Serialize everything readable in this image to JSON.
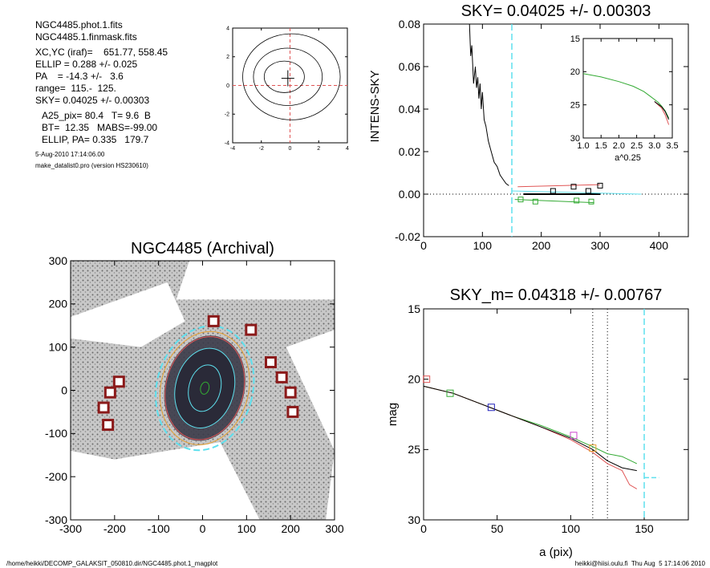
{
  "info": {
    "lines_a": [
      "NGC4485.phot.1.fits",
      "NGC4485.1.finmask.fits"
    ],
    "lines_b": [
      "XC,YC (iraf)=    651.77, 558.45",
      "ELLIP = 0.288 +/- 0.025",
      "PA    = -14.3 +/-   3.6",
      "range=  115.-  125.",
      "SKY= 0.04025 +/- 0.00303"
    ],
    "lines_c": [
      "A25_pix= 80.4   T= 9.6  B",
      "BT=  12.35   MABS=-99.00",
      "ELLIP, PA= 0.335   179.7"
    ],
    "date": "5-Aug-2010 17:14:06.00",
    "program": "make_datalist0.pro (version HS230610)"
  },
  "footer": {
    "left": "/home/heikki/DECOMP_GALAKSIT_050810.dir/NGC4485.phot.1_magplot",
    "right": "heikki@hiisi.oulu.fi  Thu Aug  5 17:14:06 2010"
  },
  "colors": {
    "cyan": "#5ee0ee",
    "red": "#e05555",
    "green": "#33aa33",
    "blue": "#2222bb",
    "orange": "#e6a030",
    "pink": "#cc44cc",
    "black": "#000000"
  },
  "chart_data": [
    {
      "id": "center-contour",
      "type": "contour",
      "title": "",
      "xlim": [
        -4,
        4
      ],
      "ylim": [
        -4,
        4
      ],
      "xticks": [
        "-4",
        "-2",
        "0",
        "2",
        "4"
      ],
      "yticks": [
        "-4",
        "-2",
        "0",
        "2",
        "4"
      ],
      "center": [
        -0.15,
        0.5
      ]
    },
    {
      "id": "sky-profile",
      "type": "line",
      "title": "SKY= 0.04025 +/- 0.00303",
      "ylabel": "INTENS-SKY",
      "xlim": [
        0,
        450
      ],
      "ylim": [
        -0.02,
        0.08
      ],
      "xticks": [
        "0",
        "100",
        "200",
        "300",
        "400"
      ],
      "yticks": [
        "-0.02",
        "0.00",
        "0.02",
        "0.04",
        "0.06",
        "0.08"
      ],
      "sky_radius": 150,
      "series": [
        {
          "color": "black",
          "x": [
            78,
            80,
            82,
            85,
            88,
            90,
            92,
            94,
            96,
            98,
            100,
            103,
            106,
            110,
            115,
            120,
            125,
            130,
            135,
            140,
            145
          ],
          "y": [
            0.08,
            0.065,
            0.07,
            0.052,
            0.06,
            0.05,
            0.055,
            0.045,
            0.052,
            0.04,
            0.048,
            0.035,
            0.032,
            0.025,
            0.02,
            0.015,
            0.013,
            0.009,
            0.007,
            0.005,
            0.004
          ]
        },
        {
          "color": "black",
          "x": [
            170,
            300
          ],
          "y": [
            0.0,
            0.0
          ]
        },
        {
          "color": "cyan",
          "x": [
            150,
            370
          ],
          "y": [
            0.0015,
            0.0
          ]
        },
        {
          "color": "red",
          "x": [
            160,
            300
          ],
          "y": [
            0.0035,
            0.0045
          ]
        },
        {
          "color": "green",
          "x": [
            155,
            290
          ],
          "y": [
            -0.0025,
            -0.004
          ]
        }
      ],
      "markers": [
        {
          "color": "green",
          "x": 165,
          "y": -0.0025
        },
        {
          "color": "green",
          "x": 190,
          "y": -0.0035
        },
        {
          "color": "green",
          "x": 260,
          "y": -0.003
        },
        {
          "color": "green",
          "x": 285,
          "y": -0.0035
        },
        {
          "color": "black",
          "x": 220,
          "y": 0.0015
        },
        {
          "color": "black",
          "x": 255,
          "y": 0.0035
        },
        {
          "color": "black",
          "x": 280,
          "y": 0.0015
        },
        {
          "color": "black",
          "x": 300,
          "y": 0.004
        }
      ]
    },
    {
      "id": "inset",
      "type": "line",
      "title": "",
      "xlabel": "a^0.25",
      "xlim": [
        1.0,
        3.5
      ],
      "ylim": [
        15,
        30
      ],
      "xticks": [
        "1.0",
        "1.5",
        "2.0",
        "2.5",
        "3.0",
        "3.5"
      ],
      "yticks": [
        "15",
        "20",
        "25",
        "30"
      ],
      "series": [
        {
          "color": "green",
          "x": [
            1.0,
            1.5,
            2.0,
            2.4,
            2.7,
            2.9,
            3.1,
            3.2,
            3.3,
            3.4
          ],
          "y": [
            20.3,
            20.8,
            21.5,
            22.2,
            23.0,
            23.8,
            24.6,
            25.2,
            25.9,
            27.0
          ]
        },
        {
          "color": "red",
          "x": [
            3.0,
            3.2,
            3.3,
            3.4
          ],
          "y": [
            24.5,
            25.5,
            26.5,
            28.0
          ]
        },
        {
          "color": "black",
          "x": [
            3.0,
            3.2,
            3.3,
            3.4
          ],
          "y": [
            24.5,
            25.3,
            26.0,
            27.2
          ]
        }
      ]
    },
    {
      "id": "galaxy-image",
      "type": "image",
      "title": "NGC4485 (Archival)",
      "xlim": [
        -300,
        300
      ],
      "ylim": [
        -300,
        300
      ],
      "xticks": [
        "-300",
        "-200",
        "-100",
        "0",
        "100",
        "200",
        "300"
      ],
      "yticks": [
        "-300",
        "-200",
        "-100",
        "0",
        "100",
        "200",
        "300"
      ],
      "masked_squares": [
        [
          25,
          160
        ],
        [
          110,
          140
        ],
        [
          155,
          65
        ],
        [
          180,
          30
        ],
        [
          200,
          -5
        ],
        [
          205,
          -50
        ],
        [
          -190,
          20
        ],
        [
          -210,
          -5
        ],
        [
          -225,
          -40
        ],
        [
          -215,
          -80
        ]
      ],
      "ellipse": {
        "center": [
          5,
          5
        ],
        "a": 130,
        "b": 95,
        "pa_deg": -14
      }
    },
    {
      "id": "mag-profile",
      "type": "line",
      "title": "SKY_m=  0.04318 +/- 0.00767",
      "xlabel": "a (pix)",
      "ylabel": "mag",
      "xlim": [
        0,
        180
      ],
      "ylim": [
        15,
        30
      ],
      "xticks": [
        "0",
        "50",
        "100",
        "150"
      ],
      "yticks": [
        "15",
        "20",
        "25",
        "30"
      ],
      "vlines_dotted": [
        115,
        125
      ],
      "sky_radius": 150,
      "series": [
        {
          "color": "green",
          "x": [
            0,
            20,
            40,
            60,
            80,
            100,
            115,
            125,
            135,
            145
          ],
          "y": [
            20.5,
            21.0,
            21.8,
            22.6,
            23.3,
            24.1,
            24.8,
            25.3,
            25.5,
            26.0
          ]
        },
        {
          "color": "red",
          "x": [
            0,
            20,
            40,
            60,
            80,
            100,
            115,
            125,
            135,
            140,
            145
          ],
          "y": [
            20.5,
            21.0,
            21.8,
            22.6,
            23.4,
            24.3,
            25.2,
            26.0,
            26.5,
            27.5,
            27.8
          ]
        },
        {
          "color": "black",
          "x": [
            0,
            20,
            40,
            60,
            80,
            100,
            115,
            125,
            135,
            145
          ],
          "y": [
            20.5,
            21.0,
            21.8,
            22.6,
            23.4,
            24.2,
            25.0,
            25.8,
            26.3,
            26.5
          ]
        },
        {
          "color": "cyan",
          "x": [
            150,
            160
          ],
          "y": [
            27.0,
            27.0
          ]
        }
      ],
      "markers": [
        {
          "color": "red",
          "x": 2,
          "y": 20.0
        },
        {
          "color": "green",
          "x": 18,
          "y": 21.0
        },
        {
          "color": "blue",
          "x": 46,
          "y": 22.0
        },
        {
          "color": "pink",
          "x": 102,
          "y": 24.0
        },
        {
          "color": "orange",
          "x": 115,
          "y": 24.9
        }
      ]
    }
  ]
}
